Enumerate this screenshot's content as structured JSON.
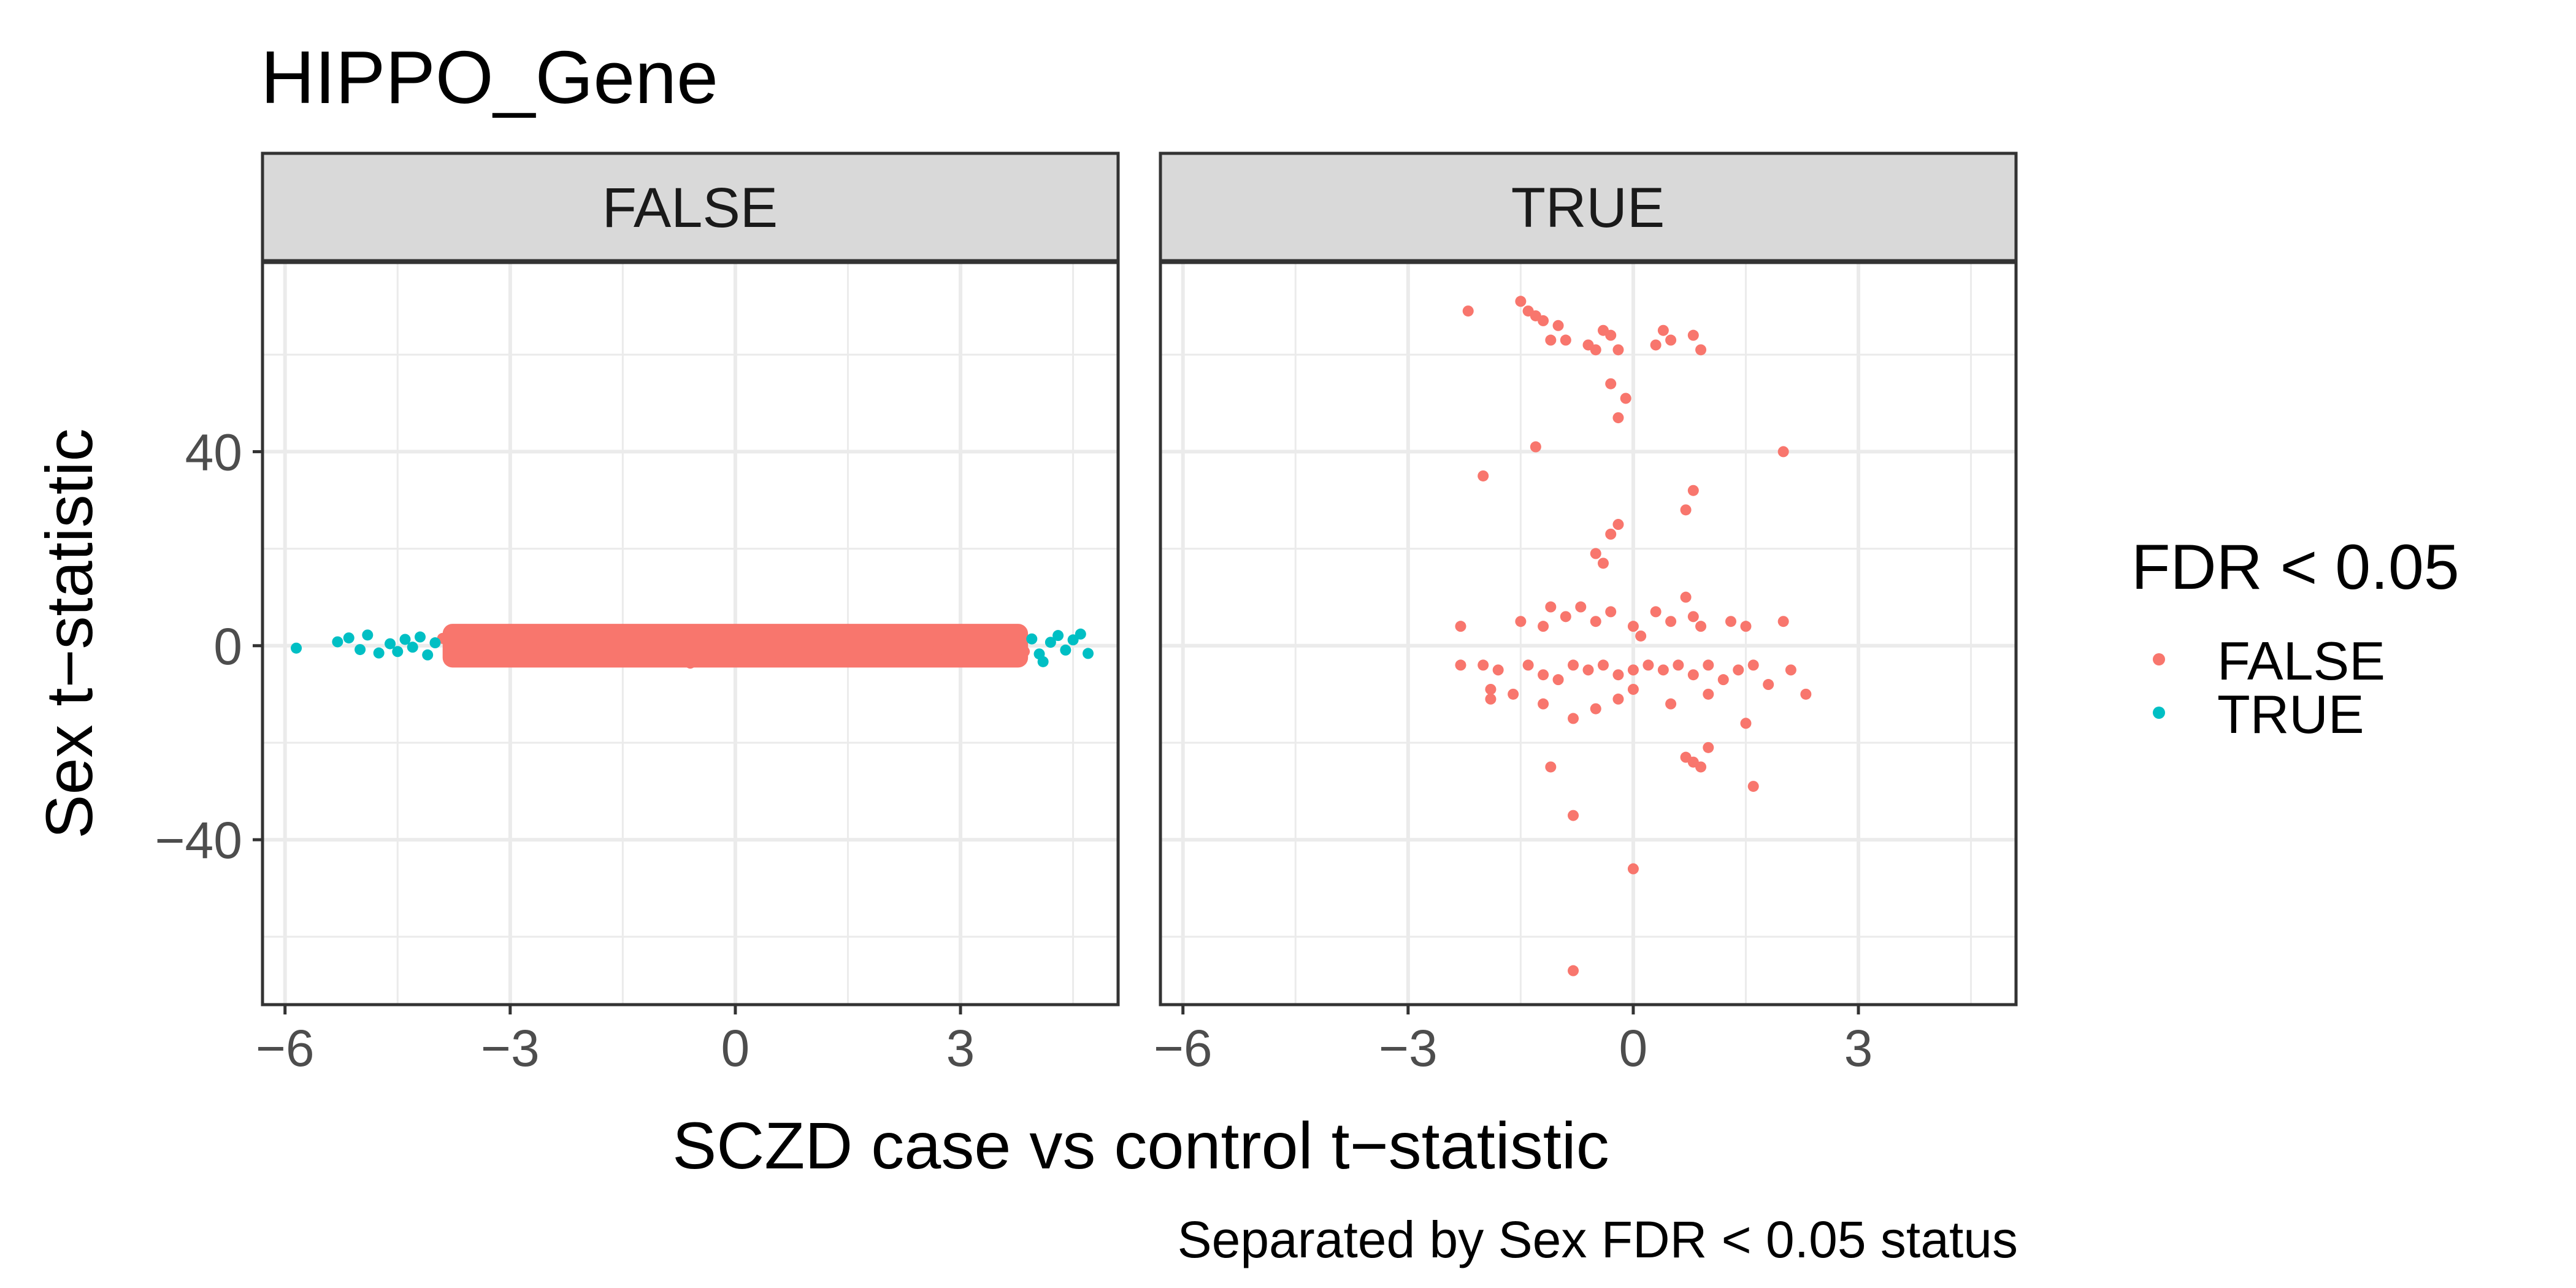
{
  "chart_data": {
    "type": "scatter",
    "title": "HIPPO_Gene",
    "caption": "Separated by Sex FDR < 0.05 status",
    "xlabel": "SCZD case vs control t−statistic",
    "ylabel": "Sex t−statistic",
    "xlim": [
      -6.3,
      5.1
    ],
    "ylim": [
      -74,
      79
    ],
    "x_ticks": [
      -6,
      -3,
      0,
      3
    ],
    "x_tick_labels": [
      "−6",
      "−3",
      "0",
      "3"
    ],
    "y_ticks": [
      -40,
      0,
      40
    ],
    "y_tick_labels": [
      "−40",
      "0",
      "40"
    ],
    "grid": true,
    "legend": {
      "title": "FDR < 0.05",
      "position": "right",
      "entries": [
        {
          "label": "FALSE",
          "color": "#F8766D"
        },
        {
          "label": "TRUE",
          "color": "#00BFC4"
        }
      ]
    },
    "panels": [
      {
        "strip": "FALSE",
        "series": [
          {
            "name": "FALSE",
            "color": "#F8766D",
            "band": {
              "x_min": -3.9,
              "x_max": 3.9,
              "y_min": -4.5,
              "y_max": 4.5
            },
            "points": [
              [
                -3.9,
                1.5
              ],
              [
                -3.7,
                -1.6
              ],
              [
                -3.5,
                0.8
              ],
              [
                -3.3,
                -2.4
              ],
              [
                -3.0,
                2.6
              ],
              [
                -2.7,
                -0.5
              ],
              [
                -2.4,
                3.0
              ],
              [
                -2.1,
                -3.1
              ],
              [
                -1.8,
                1.9
              ],
              [
                -1.5,
                -2.8
              ],
              [
                -1.2,
                0.4
              ],
              [
                -0.9,
                3.2
              ],
              [
                -0.6,
                -3.6
              ],
              [
                -0.3,
                1.2
              ],
              [
                0.0,
                -1.5
              ],
              [
                0.3,
                3.3
              ],
              [
                0.6,
                -3.0
              ],
              [
                0.9,
                0.7
              ],
              [
                1.2,
                2.8
              ],
              [
                1.5,
                -2.2
              ],
              [
                1.8,
                1.6
              ],
              [
                2.1,
                -3.2
              ],
              [
                2.4,
                2.1
              ],
              [
                2.7,
                -1.0
              ],
              [
                3.0,
                2.4
              ],
              [
                3.3,
                -2.3
              ],
              [
                3.6,
                1.0
              ],
              [
                3.85,
                -1.2
              ]
            ]
          },
          {
            "name": "TRUE",
            "color": "#00BFC4",
            "points": [
              [
                -5.85,
                -0.5
              ],
              [
                -5.3,
                0.8
              ],
              [
                -5.15,
                1.6
              ],
              [
                -5.0,
                -0.8
              ],
              [
                -4.9,
                2.2
              ],
              [
                -4.75,
                -1.5
              ],
              [
                -4.6,
                0.4
              ],
              [
                -4.5,
                -1.2
              ],
              [
                -4.4,
                1.3
              ],
              [
                -4.3,
                -0.3
              ],
              [
                -4.2,
                1.8
              ],
              [
                -4.1,
                -1.9
              ],
              [
                -4.0,
                0.6
              ],
              [
                3.95,
                1.4
              ],
              [
                4.05,
                -1.7
              ],
              [
                4.1,
                -3.3
              ],
              [
                4.2,
                0.7
              ],
              [
                4.3,
                2.1
              ],
              [
                4.4,
                -0.9
              ],
              [
                4.5,
                1.2
              ],
              [
                4.6,
                2.4
              ],
              [
                4.7,
                -1.6
              ]
            ]
          }
        ]
      },
      {
        "strip": "TRUE",
        "series": [
          {
            "name": "FALSE",
            "color": "#F8766D",
            "points": [
              [
                -2.2,
                69
              ],
              [
                -1.5,
                71
              ],
              [
                -1.4,
                69
              ],
              [
                -1.3,
                68
              ],
              [
                -1.2,
                67
              ],
              [
                -1.0,
                66
              ],
              [
                -0.9,
                63
              ],
              [
                -1.1,
                63
              ],
              [
                -0.6,
                62
              ],
              [
                -0.5,
                61
              ],
              [
                -0.4,
                65
              ],
              [
                -0.3,
                64
              ],
              [
                -0.2,
                61
              ],
              [
                0.4,
                65
              ],
              [
                0.5,
                63
              ],
              [
                0.3,
                62
              ],
              [
                0.8,
                64
              ],
              [
                0.9,
                61
              ],
              [
                -0.3,
                54
              ],
              [
                -0.1,
                51
              ],
              [
                -0.2,
                47
              ],
              [
                -1.3,
                41
              ],
              [
                2.0,
                40
              ],
              [
                -2.0,
                35
              ],
              [
                0.8,
                32
              ],
              [
                0.7,
                28
              ],
              [
                -0.2,
                25
              ],
              [
                -0.3,
                23
              ],
              [
                -0.5,
                19
              ],
              [
                -0.4,
                17
              ],
              [
                -2.3,
                4
              ],
              [
                -1.5,
                5
              ],
              [
                -1.2,
                4
              ],
              [
                -1.1,
                8
              ],
              [
                -0.9,
                6
              ],
              [
                -0.7,
                8
              ],
              [
                -0.5,
                5
              ],
              [
                -0.3,
                7
              ],
              [
                0.0,
                4
              ],
              [
                0.1,
                2
              ],
              [
                0.3,
                7
              ],
              [
                0.5,
                5
              ],
              [
                0.7,
                10
              ],
              [
                0.8,
                6
              ],
              [
                0.9,
                4
              ],
              [
                1.3,
                5
              ],
              [
                1.5,
                4
              ],
              [
                2.0,
                5
              ],
              [
                -2.3,
                -4
              ],
              [
                -2.0,
                -4
              ],
              [
                -1.8,
                -5
              ],
              [
                -1.4,
                -4
              ],
              [
                -1.2,
                -6
              ],
              [
                -1.0,
                -7
              ],
              [
                -0.8,
                -4
              ],
              [
                -0.6,
                -5
              ],
              [
                -0.4,
                -4
              ],
              [
                -0.2,
                -6
              ],
              [
                0.0,
                -5
              ],
              [
                0.2,
                -4
              ],
              [
                0.4,
                -5
              ],
              [
                0.6,
                -4
              ],
              [
                0.8,
                -6
              ],
              [
                1.0,
                -4
              ],
              [
                1.2,
                -7
              ],
              [
                1.4,
                -5
              ],
              [
                1.6,
                -4
              ],
              [
                1.8,
                -8
              ],
              [
                2.1,
                -5
              ],
              [
                -1.9,
                -9
              ],
              [
                -1.6,
                -10
              ],
              [
                -1.2,
                -12
              ],
              [
                -0.8,
                -15
              ],
              [
                -0.5,
                -13
              ],
              [
                -0.2,
                -11
              ],
              [
                0.0,
                -9
              ],
              [
                0.5,
                -12
              ],
              [
                1.0,
                -10
              ],
              [
                1.5,
                -16
              ],
              [
                2.3,
                -10
              ],
              [
                -1.9,
                -11
              ],
              [
                -1.1,
                -25
              ],
              [
                0.7,
                -23
              ],
              [
                0.8,
                -24
              ],
              [
                1.0,
                -21
              ],
              [
                1.6,
                -29
              ],
              [
                0.9,
                -25
              ],
              [
                -0.8,
                -35
              ],
              [
                0.0,
                -46
              ],
              [
                -0.8,
                -67
              ]
            ]
          }
        ]
      }
    ]
  }
}
